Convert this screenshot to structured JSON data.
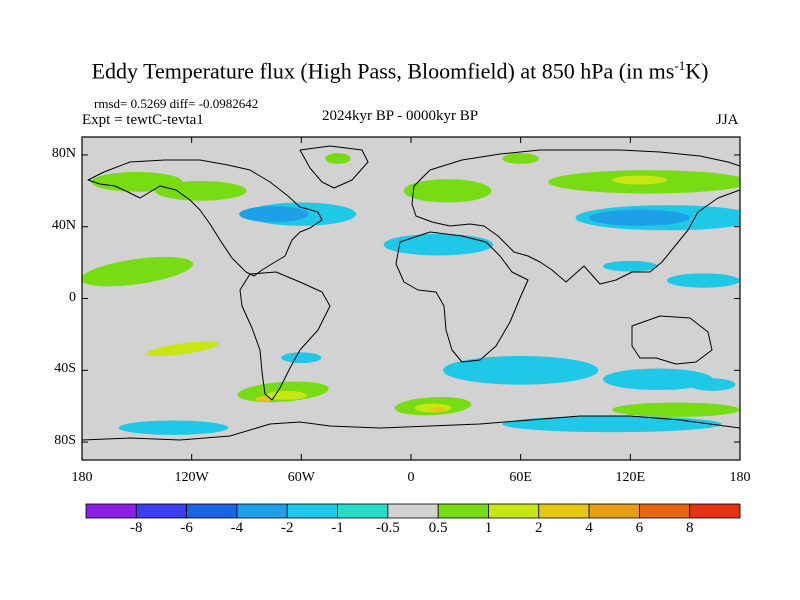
{
  "title": {
    "main": "Eddy Temperature flux (High Pass, Bloomfield) at 850 hPa (in ms",
    "sup": "-1",
    "tail": "K)"
  },
  "stats": "rmsd= 0.5269 diff= -0.0982642",
  "expt": "Expt = tewtC-tevta1",
  "period": "2024kyr BP - 0000kyr BP",
  "season": "JJA",
  "chart_data": {
    "type": "heatmap",
    "map": "world-equirectangular",
    "xlim": [
      -180,
      180
    ],
    "ylim": [
      -90,
      90
    ],
    "x_ticks": [
      {
        "value": -180,
        "label": "180"
      },
      {
        "value": -120,
        "label": "120W"
      },
      {
        "value": -60,
        "label": "60W"
      },
      {
        "value": 0,
        "label": "0"
      },
      {
        "value": 60,
        "label": "60E"
      },
      {
        "value": 120,
        "label": "120E"
      },
      {
        "value": 180,
        "label": "180"
      }
    ],
    "y_ticks": [
      {
        "value": 80,
        "label": "80N"
      },
      {
        "value": 40,
        "label": "40N"
      },
      {
        "value": 0,
        "label": "0"
      },
      {
        "value": -40,
        "label": "40S"
      },
      {
        "value": -80,
        "label": "80S"
      }
    ],
    "colorbar": {
      "levels": [
        "-8",
        "-6",
        "-4",
        "-2",
        "-1",
        "-0.5",
        "0.5",
        "1",
        "2",
        "4",
        "6",
        "8"
      ],
      "colors": [
        "#8c1ee6",
        "#3c3cf0",
        "#1e64e6",
        "#1ea0e6",
        "#1ec8e6",
        "#28dcc8",
        "#d2d2d2",
        "#78dc14",
        "#c8e614",
        "#e6c814",
        "#e6a014",
        "#e66414",
        "#e63214"
      ]
    },
    "regions": [
      {
        "lon": -150,
        "lat": 15,
        "w": 62,
        "h": 14,
        "rot": -8,
        "level": 1
      },
      {
        "lon": -70,
        "lat": -52,
        "w": 50,
        "h": 11,
        "rot": -4,
        "level": 1
      },
      {
        "lon": 12,
        "lat": -60,
        "w": 42,
        "h": 10,
        "rot": -3,
        "level": 1
      },
      {
        "lon": 20,
        "lat": 60,
        "w": 48,
        "h": 13,
        "rot": 0,
        "level": 1
      },
      {
        "lon": 130,
        "lat": 65,
        "w": 110,
        "h": 13,
        "rot": 0,
        "level": 1
      },
      {
        "lon": -150,
        "lat": 65,
        "w": 50,
        "h": 11,
        "rot": 0,
        "level": 1
      },
      {
        "lon": -115,
        "lat": 60,
        "w": 50,
        "h": 11,
        "rot": 0,
        "level": 1
      },
      {
        "lon": 145,
        "lat": -62,
        "w": 70,
        "h": 8,
        "rot": 0,
        "level": 1
      },
      {
        "lon": -40,
        "lat": 78,
        "w": 14,
        "h": 6,
        "rot": 0,
        "level": 1
      },
      {
        "lon": 60,
        "lat": 78,
        "w": 20,
        "h": 6,
        "rot": 0,
        "level": 1
      },
      {
        "lon": -60,
        "lat": 47,
        "w": 60,
        "h": 13,
        "rot": 0,
        "level": -1
      },
      {
        "lon": -75,
        "lat": 47,
        "w": 38,
        "h": 9,
        "rot": 0,
        "level": -2
      },
      {
        "lon": 140,
        "lat": 45,
        "w": 100,
        "h": 14,
        "rot": 0,
        "level": -1
      },
      {
        "lon": 125,
        "lat": 45,
        "w": 55,
        "h": 9,
        "rot": 0,
        "level": -2
      },
      {
        "lon": 15,
        "lat": 30,
        "w": 60,
        "h": 12,
        "rot": 0,
        "level": -1
      },
      {
        "lon": 160,
        "lat": 10,
        "w": 40,
        "h": 8,
        "rot": 0,
        "level": -1
      },
      {
        "lon": 120,
        "lat": 18,
        "w": 30,
        "h": 6,
        "rot": 0,
        "level": -1
      },
      {
        "lon": 60,
        "lat": -40,
        "w": 85,
        "h": 16,
        "rot": 0,
        "level": -1
      },
      {
        "lon": 135,
        "lat": -45,
        "w": 60,
        "h": 12,
        "rot": 0,
        "level": -1
      },
      {
        "lon": 110,
        "lat": -70,
        "w": 120,
        "h": 9,
        "rot": 0,
        "level": -1
      },
      {
        "lon": -130,
        "lat": -72,
        "w": 60,
        "h": 8,
        "rot": 0,
        "level": -1
      },
      {
        "lon": -60,
        "lat": -33,
        "w": 22,
        "h": 6,
        "rot": 0,
        "level": -1
      },
      {
        "lon": 165,
        "lat": -48,
        "w": 25,
        "h": 7,
        "rot": 0,
        "level": -1
      },
      {
        "lon": -125,
        "lat": -28,
        "w": 40,
        "h": 6,
        "rot": -8,
        "level": 2
      },
      {
        "lon": -68,
        "lat": -54,
        "w": 22,
        "h": 5,
        "rot": 0,
        "level": 2
      },
      {
        "lon": 12,
        "lat": -61,
        "w": 20,
        "h": 5,
        "rot": 0,
        "level": 2
      },
      {
        "lon": 125,
        "lat": 66,
        "w": 30,
        "h": 5,
        "rot": 0,
        "level": 2
      },
      {
        "lon": -80,
        "lat": -56,
        "w": 10,
        "h": 3,
        "rot": 0,
        "level": 4
      },
      {
        "lon": 15,
        "lat": -62,
        "w": 8,
        "h": 3,
        "rot": 0,
        "level": 4
      }
    ]
  }
}
